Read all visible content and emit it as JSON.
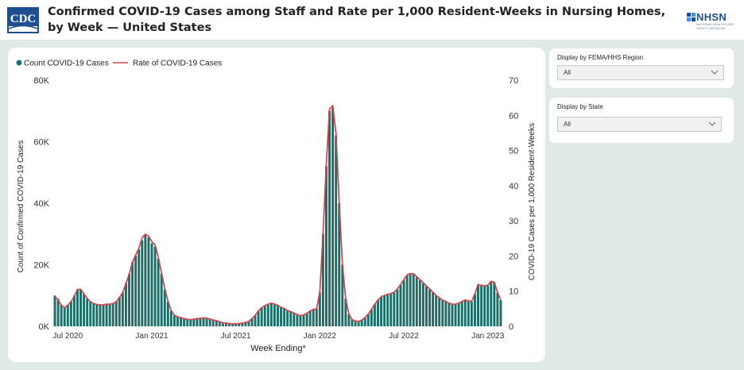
{
  "header": {
    "title": "Confirmed COVID-19 Cases among Staff and Rate per 1,000 Resident-Weeks in Nursing Homes, by Week — United States",
    "logo_left_text": "CDC",
    "logo_right_text": "NHSN",
    "logo_right_subtext": "NATIONAL HEALTHCARE SAFETY NETWORK"
  },
  "filters": {
    "region": {
      "label": "Display by FEMA/HHS Region",
      "value": "All"
    },
    "state": {
      "label": "Display by State",
      "value": "All"
    }
  },
  "colors": {
    "bars": "#1b6e68",
    "line": "#c9474e",
    "panel_bg": "#dfe9e8",
    "cdc_blue": "#1d4f91"
  },
  "chart_data": {
    "type": "bar+line",
    "xlabel": "Week Ending*",
    "ylabel_left": "Count of Confirmed COVID-19 Cases",
    "ylabel_right": "COVID-19 Cases per 1,000 Resident-Weeks",
    "legend": [
      {
        "name": "Count COVID-19 Cases",
        "marker": "dot"
      },
      {
        "name": "Rate of COVID-19 Cases",
        "marker": "line"
      }
    ],
    "legend_position": "top-left",
    "ylim_left": [
      0,
      80000
    ],
    "ylim_right": [
      0,
      70
    ],
    "yticks_left": [
      "0K",
      "20K",
      "40K",
      "60K",
      "80K"
    ],
    "yticks_right": [
      "0",
      "10",
      "20",
      "30",
      "40",
      "50",
      "60",
      "70"
    ],
    "xtick_labels": [
      "Jul 2020",
      "Jan 2021",
      "Jul 2021",
      "Jan 2022",
      "Jul 2022",
      "Jan 2023"
    ],
    "xtick_week_index": [
      4,
      30,
      56,
      82,
      108,
      134
    ],
    "count_series": [
      10000,
      9000,
      7000,
      6000,
      7000,
      8000,
      10000,
      12000,
      12000,
      10500,
      9000,
      8000,
      7500,
      7000,
      7000,
      7000,
      7200,
      7200,
      7500,
      8000,
      9500,
      11000,
      14000,
      17000,
      21000,
      23000,
      25000,
      28000,
      30000,
      29000,
      27000,
      26000,
      22000,
      17000,
      12000,
      8000,
      5000,
      3500,
      3000,
      2800,
      2500,
      2300,
      2200,
      2300,
      2500,
      2600,
      2700,
      2600,
      2400,
      2100,
      1800,
      1500,
      1200,
      1000,
      900,
      800,
      800,
      900,
      1000,
      1200,
      1600,
      2500,
      3500,
      5000,
      6000,
      6700,
      7200,
      7500,
      7200,
      6800,
      6200,
      5800,
      5200,
      4800,
      4300,
      3800,
      3500,
      3700,
      4200,
      5000,
      5500,
      5700,
      11000,
      30000,
      52000,
      70000,
      71000,
      62000,
      40000,
      20000,
      9000,
      4000,
      2200,
      1700,
      1600,
      2000,
      2800,
      4000,
      5500,
      7200,
      8500,
      9500,
      10000,
      10300,
      10500,
      11000,
      12000,
      13500,
      15000,
      16500,
      17000,
      17000,
      16000,
      15000,
      14000,
      13000,
      12000,
      11000,
      10000,
      9200,
      8500,
      8000,
      7500,
      7200,
      7200,
      7500,
      8000,
      8500,
      8200,
      8000,
      10500,
      13500,
      13200,
      13000,
      13200,
      14500,
      14300,
      11000,
      8500
    ],
    "rate_series": [
      8.5,
      7.5,
      6.0,
      5.3,
      6.0,
      7.0,
      8.5,
      10.5,
      10.5,
      9.2,
      8.0,
      7.0,
      6.5,
      6.2,
      6.1,
      6.1,
      6.3,
      6.3,
      6.5,
      7.0,
      8.2,
      9.6,
      12.2,
      14.8,
      18.2,
      20.3,
      22.2,
      25.2,
      26.2,
      25.7,
      24.1,
      23.2,
      19.7,
      15.2,
      10.8,
      7.2,
      4.5,
      3.2,
      2.7,
      2.5,
      2.2,
      2.0,
      1.9,
      2.0,
      2.2,
      2.3,
      2.4,
      2.3,
      2.1,
      1.8,
      1.6,
      1.3,
      1.0,
      0.9,
      0.8,
      0.7,
      0.7,
      0.8,
      0.9,
      1.1,
      1.4,
      2.2,
      3.1,
      4.4,
      5.3,
      5.9,
      6.3,
      6.6,
      6.3,
      6.0,
      5.4,
      5.1,
      4.5,
      4.2,
      3.8,
      3.3,
      3.1,
      3.2,
      3.7,
      4.4,
      4.8,
      5.0,
      9.7,
      26.5,
      46.0,
      61.8,
      62.8,
      54.9,
      35.3,
      17.7,
      7.9,
      3.5,
      1.9,
      1.5,
      1.4,
      1.8,
      2.5,
      3.5,
      4.8,
      6.3,
      7.5,
      8.4,
      8.8,
      9.1,
      9.3,
      9.7,
      10.6,
      11.9,
      13.3,
      14.6,
      15.0,
      15.0,
      14.1,
      13.3,
      12.4,
      11.5,
      10.6,
      9.7,
      8.8,
      8.1,
      7.5,
      7.1,
      6.6,
      6.3,
      6.3,
      6.6,
      7.1,
      7.5,
      7.2,
      7.1,
      9.3,
      11.9,
      11.7,
      11.5,
      11.7,
      12.8,
      12.6,
      9.7,
      7.5
    ]
  }
}
